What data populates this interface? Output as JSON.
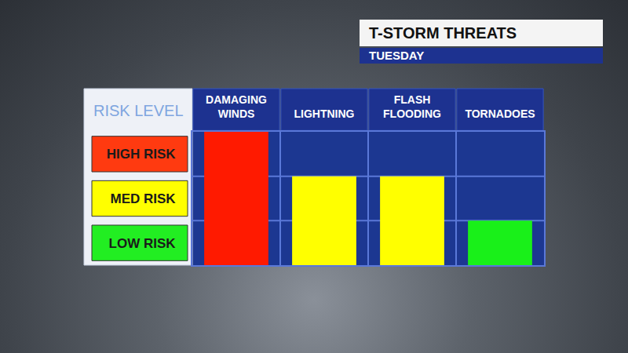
{
  "chart_data": {
    "type": "bar",
    "title": "T-STORM THREATS",
    "subtitle": "TUESDAY",
    "y_label": "RISK LEVEL",
    "categories": [
      "DAMAGING WINDS",
      "LIGHTNING",
      "FLASH FLOODING",
      "TORNADOES"
    ],
    "values": [
      3,
      2,
      2,
      1
    ],
    "colors": [
      "#ff1a00",
      "#ffff00",
      "#ffff00",
      "#19f019"
    ],
    "ylim": [
      0,
      3
    ],
    "yticks": [
      {
        "value": 0.5,
        "label": "LOW RISK"
      },
      {
        "value": 1.5,
        "label": "MED RISK"
      },
      {
        "value": 2.5,
        "label": "HIGH RISK"
      }
    ]
  }
}
